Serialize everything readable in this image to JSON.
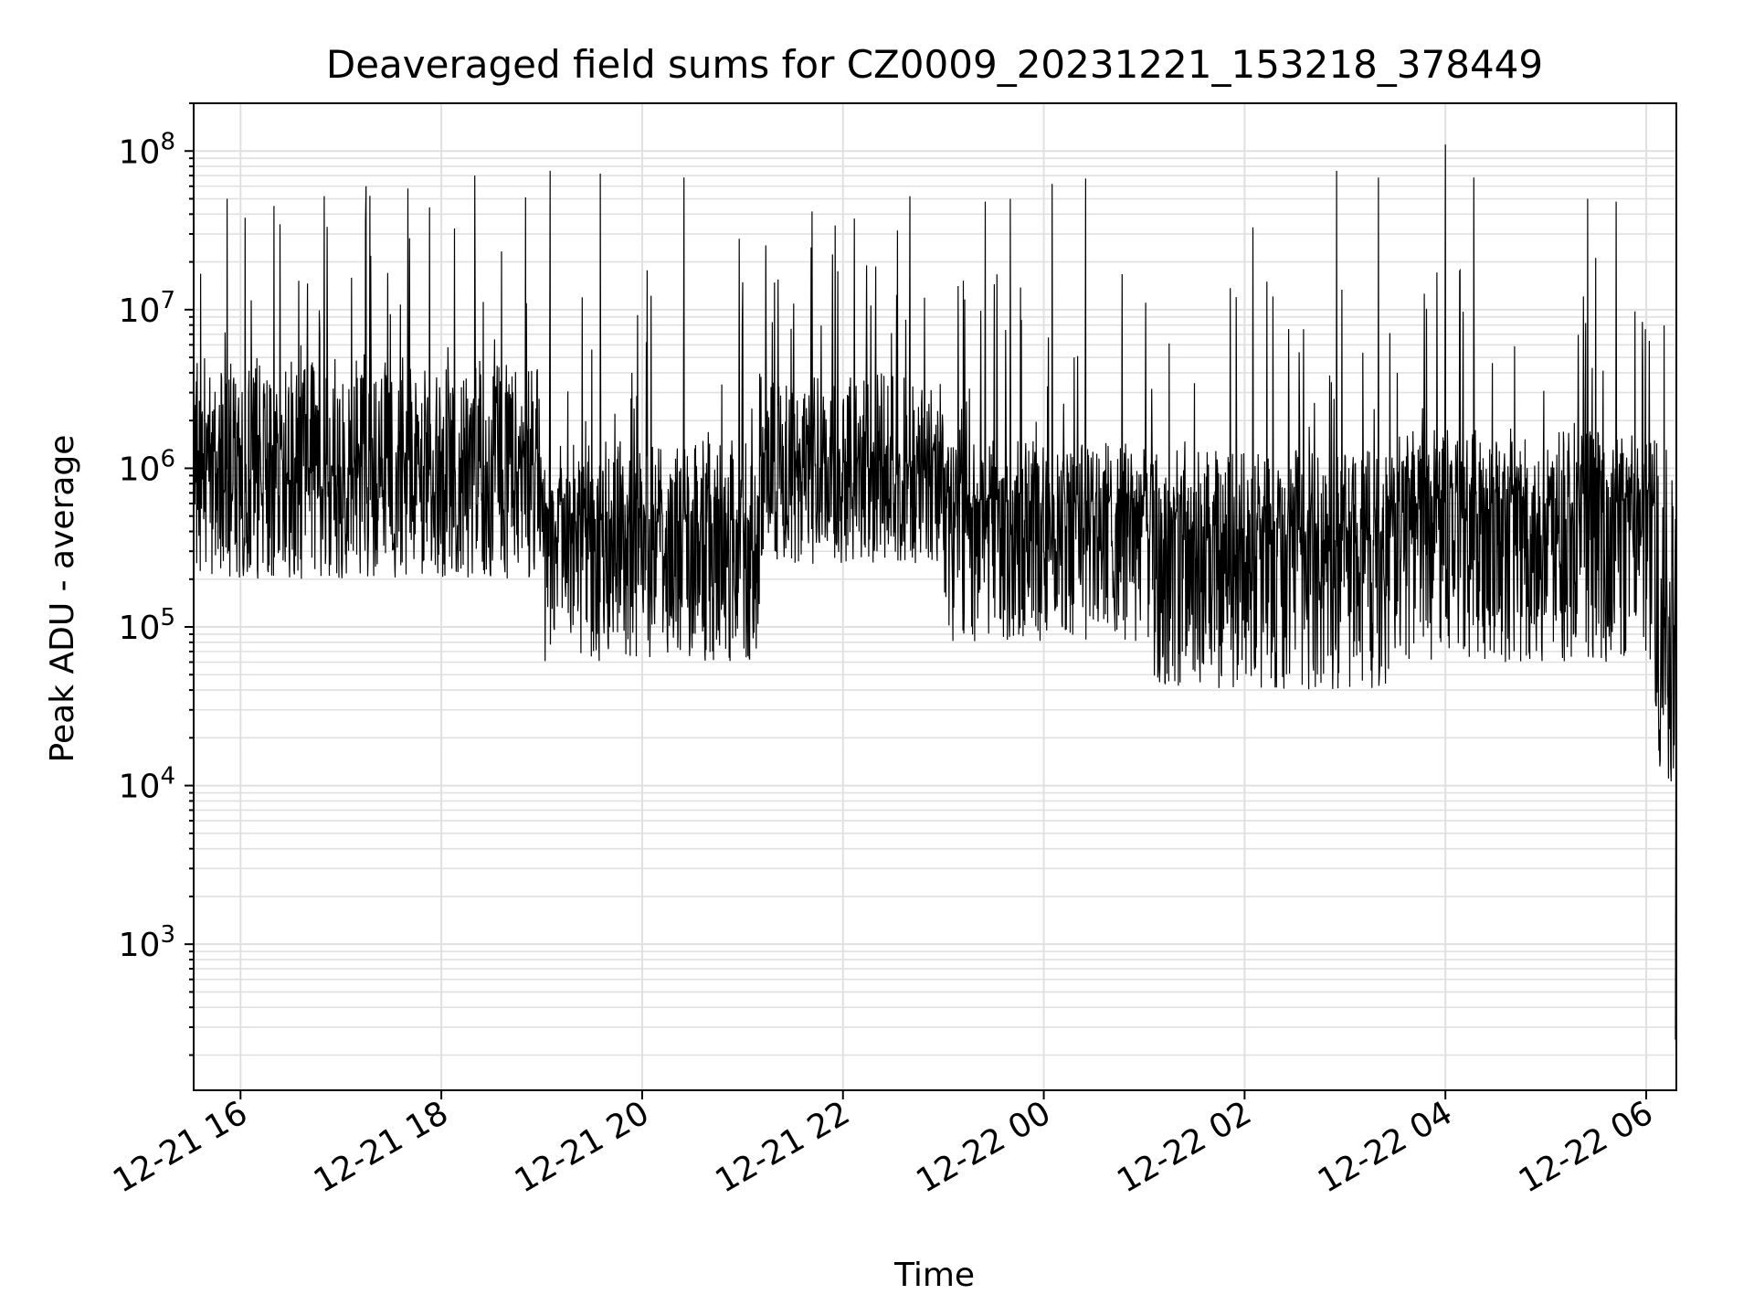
{
  "chart_data": {
    "type": "line",
    "title": "Deaveraged field sums for CZ0009_20231221_153218_378449",
    "xlabel": "Time",
    "ylabel": "Peak ADU - average",
    "yscale": "log",
    "ylim": [
      120,
      200000000
    ],
    "xlim": [
      "2023-12-21 15:32",
      "2023-12-22 06:18"
    ],
    "grid": true,
    "line_color": "#000000",
    "grid_color": "#e0e0e0",
    "x_ticks": [
      {
        "t": "2023-12-21 16:00",
        "label": "12-21 16"
      },
      {
        "t": "2023-12-21 18:00",
        "label": "12-21 18"
      },
      {
        "t": "2023-12-21 20:00",
        "label": "12-21 20"
      },
      {
        "t": "2023-12-21 22:00",
        "label": "12-21 22"
      },
      {
        "t": "2023-12-22 00:00",
        "label": "12-22 00"
      },
      {
        "t": "2023-12-22 02:00",
        "label": "12-22 02"
      },
      {
        "t": "2023-12-22 04:00",
        "label": "12-22 04"
      },
      {
        "t": "2023-12-22 06:00",
        "label": "12-22 06"
      }
    ],
    "y_ticks": [
      {
        "value": 1000,
        "base": "10",
        "exp": "3"
      },
      {
        "value": 10000,
        "base": "10",
        "exp": "4"
      },
      {
        "value": 100000,
        "base": "10",
        "exp": "5"
      },
      {
        "value": 1000000,
        "base": "10",
        "exp": "6"
      },
      {
        "value": 10000000,
        "base": "10",
        "exp": "7"
      },
      {
        "value": 100000000,
        "base": "10",
        "exp": "8"
      }
    ],
    "series": [
      {
        "description_segments": [
          {
            "start": "2023-12-21 15:32",
            "end": "2023-12-21 19:00",
            "median": 1000000,
            "low": 200000,
            "high": 5000000
          },
          {
            "start": "2023-12-21 19:00",
            "end": "2023-12-21 21:10",
            "median": 450000,
            "low": 60000,
            "high": 1500000
          },
          {
            "start": "2023-12-21 21:10",
            "end": "2023-12-21 23:00",
            "median": 1000000,
            "low": 250000,
            "high": 4000000
          },
          {
            "start": "2023-12-21 23:00",
            "end": "2023-12-22 01:00",
            "median": 600000,
            "low": 80000,
            "high": 1500000
          },
          {
            "start": "2023-12-22 01:00",
            "end": "2023-12-22 03:30",
            "median": 350000,
            "low": 40000,
            "high": 1300000
          },
          {
            "start": "2023-12-22 03:30",
            "end": "2023-12-22 06:05",
            "median": 600000,
            "low": 60000,
            "high": 1800000
          },
          {
            "start": "2023-12-22 06:05",
            "end": "2023-12-22 06:18",
            "median": 80000,
            "low": 10000,
            "high": 1500000
          }
        ],
        "peaks": [
          {
            "t": "2023-12-21 15:52",
            "v": 50000000
          },
          {
            "t": "2023-12-21 16:20",
            "v": 45000000
          },
          {
            "t": "2023-12-21 16:50",
            "v": 52000000
          },
          {
            "t": "2023-12-21 17:15",
            "v": 60000000
          },
          {
            "t": "2023-12-21 17:40",
            "v": 58000000
          },
          {
            "t": "2023-12-21 18:20",
            "v": 70000000
          },
          {
            "t": "2023-12-21 19:05",
            "v": 75000000
          },
          {
            "t": "2023-12-21 19:35",
            "v": 72000000
          },
          {
            "t": "2023-12-21 20:25",
            "v": 68000000
          },
          {
            "t": "2023-12-21 20:58",
            "v": 28000000
          },
          {
            "t": "2023-12-21 22:40",
            "v": 52000000
          },
          {
            "t": "2023-12-21 23:25",
            "v": 48000000
          },
          {
            "t": "2023-12-21 23:40",
            "v": 50000000
          },
          {
            "t": "2023-12-22 00:05",
            "v": 62000000
          },
          {
            "t": "2023-12-22 00:25",
            "v": 67000000
          },
          {
            "t": "2023-12-22 01:55",
            "v": 12000000
          },
          {
            "t": "2023-12-22 02:05",
            "v": 33000000
          },
          {
            "t": "2023-12-22 02:55",
            "v": 75000000
          },
          {
            "t": "2023-12-22 03:20",
            "v": 68000000
          },
          {
            "t": "2023-12-22 04:00",
            "v": 110000000
          },
          {
            "t": "2023-12-22 04:17",
            "v": 68000000
          },
          {
            "t": "2023-12-22 05:25",
            "v": 50000000
          },
          {
            "t": "2023-12-22 05:42",
            "v": 48000000
          }
        ]
      }
    ]
  }
}
